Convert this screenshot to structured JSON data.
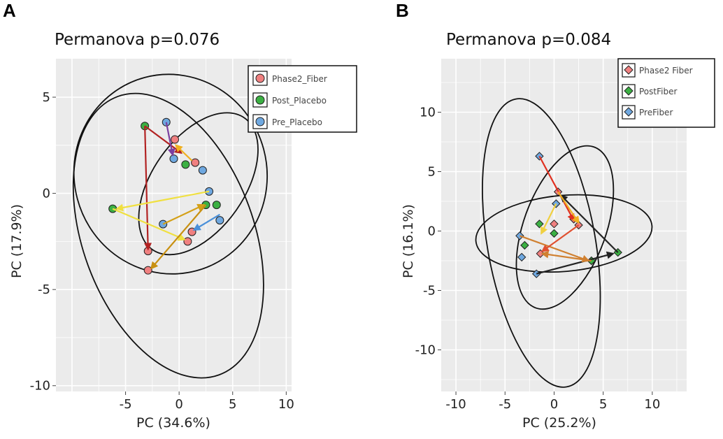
{
  "chart_data": [
    {
      "panel_label": "A",
      "type": "scatter",
      "title": "Permanova p=0.076",
      "xlabel": "PC  (34.6%)",
      "ylabel": "PC  (17.9%)",
      "xlim": [
        -11.5,
        10.5
      ],
      "ylim": [
        -10.3,
        7
      ],
      "xticks": [
        -5,
        0,
        5,
        10
      ],
      "xtick_labels": [
        "-5",
        "0",
        "5",
        "10"
      ],
      "yticks": [
        5,
        0,
        -5,
        -10
      ],
      "ytick_labels": [
        "5",
        "0",
        "-5",
        "-10"
      ],
      "legend": [
        {
          "label": "Phase2_Fiber",
          "color": "#f08080",
          "shape": "circle"
        },
        {
          "label": "Post_Placebo",
          "color": "#3cb043",
          "shape": "circle"
        },
        {
          "label": "Pre_Placebo",
          "color": "#6fa8e0",
          "shape": "circle"
        }
      ],
      "legend_position": "top-right",
      "points": [
        {
          "x": -3.2,
          "y": 3.5,
          "group": "Post_Placebo"
        },
        {
          "x": -6.2,
          "y": -0.8,
          "group": "Post_Placebo"
        },
        {
          "x": 0.6,
          "y": 1.5,
          "group": "Post_Placebo"
        },
        {
          "x": 2.5,
          "y": -0.6,
          "group": "Post_Placebo"
        },
        {
          "x": 3.5,
          "y": -0.6,
          "group": "Post_Placebo"
        },
        {
          "x": -2.9,
          "y": -3.0,
          "group": "Phase2_Fiber"
        },
        {
          "x": -2.9,
          "y": -4.0,
          "group": "Phase2_Fiber"
        },
        {
          "x": -0.4,
          "y": 2.8,
          "group": "Phase2_Fiber"
        },
        {
          "x": 1.5,
          "y": 1.6,
          "group": "Phase2_Fiber"
        },
        {
          "x": 1.2,
          "y": -2.0,
          "group": "Phase2_Fiber"
        },
        {
          "x": 0.8,
          "y": -2.5,
          "group": "Phase2_Fiber"
        },
        {
          "x": -1.2,
          "y": 3.7,
          "group": "Pre_Placebo"
        },
        {
          "x": -0.5,
          "y": 1.8,
          "group": "Pre_Placebo"
        },
        {
          "x": -1.5,
          "y": -1.6,
          "group": "Pre_Placebo"
        },
        {
          "x": 2.8,
          "y": 0.1,
          "group": "Pre_Placebo"
        },
        {
          "x": 2.2,
          "y": 1.2,
          "group": "Pre_Placebo"
        },
        {
          "x": 3.8,
          "y": -1.4,
          "group": "Pre_Placebo"
        }
      ],
      "arrows": [
        {
          "from": [
            -3.2,
            3.5
          ],
          "to": [
            -2.9,
            -2.9
          ],
          "color": "#b22222"
        },
        {
          "from": [
            -3.2,
            3.5
          ],
          "to": [
            0.2,
            2.1
          ],
          "color": "#b22222"
        },
        {
          "from": [
            -1.2,
            3.7
          ],
          "to": [
            -0.6,
            2.0
          ],
          "color": "#7b3fa0"
        },
        {
          "from": [
            1.2,
            1.7
          ],
          "to": [
            -0.3,
            2.5
          ],
          "color": "#f0b020"
        },
        {
          "from": [
            2.8,
            0.1
          ],
          "to": [
            -5.8,
            -0.8
          ],
          "color": "#f0e040"
        },
        {
          "from": [
            -6.2,
            -0.8
          ],
          "to": [
            0.5,
            -2.4
          ],
          "color": "#f0e040"
        },
        {
          "from": [
            2.5,
            -0.6
          ],
          "to": [
            -2.6,
            -3.9
          ],
          "color": "#c89010"
        },
        {
          "from": [
            -1.5,
            -1.6
          ],
          "to": [
            2.3,
            -0.6
          ],
          "color": "#d4a017"
        },
        {
          "from": [
            3.8,
            -1.1
          ],
          "to": [
            1.4,
            -1.9
          ],
          "color": "#4a90d9"
        }
      ],
      "ellipses": [
        {
          "cx": -0.8,
          "cy": 1.0,
          "rx": 9.0,
          "ry": 5.2,
          "rotate_deg": -15
        },
        {
          "cx": -1.0,
          "cy": -2.2,
          "rx": 8.0,
          "ry": 7.7,
          "rotate_deg": -20
        },
        {
          "cx": 1.8,
          "cy": 0.5,
          "rx": 7.5,
          "ry": 2.4,
          "rotate_deg": -55
        }
      ]
    },
    {
      "panel_label": "B",
      "type": "scatter",
      "title": "Permanova p=0.084",
      "xlabel": "PC  (25.2%)",
      "ylabel": "PC  (16.1%)",
      "xlim": [
        -11.5,
        13.5
      ],
      "ylim": [
        -13.5,
        14.5
      ],
      "xticks": [
        -10,
        -5,
        0,
        5,
        10
      ],
      "xtick_labels": [
        "-10",
        "-5",
        "0",
        "5",
        "10"
      ],
      "yticks": [
        10,
        5,
        0,
        -5,
        -10
      ],
      "ytick_labels": [
        "10",
        "5",
        "0",
        "-5",
        "-10"
      ],
      "legend": [
        {
          "label": "Phase2 Fiber",
          "color": "#f08080",
          "shape": "diamond"
        },
        {
          "label": "PostFiber",
          "color": "#3cb043",
          "shape": "diamond"
        },
        {
          "label": "PreFiber",
          "color": "#6fa8e0",
          "shape": "diamond"
        }
      ],
      "legend_position": "top-right",
      "points": [
        {
          "x": -1.5,
          "y": 6.3,
          "group": "PreFiber"
        },
        {
          "x": 0.2,
          "y": 2.3,
          "group": "PreFiber"
        },
        {
          "x": -3.5,
          "y": -0.4,
          "group": "PreFiber"
        },
        {
          "x": -3.3,
          "y": -2.2,
          "group": "PreFiber"
        },
        {
          "x": -1.8,
          "y": -3.6,
          "group": "PreFiber"
        },
        {
          "x": 0.4,
          "y": 3.3,
          "group": "Phase2 Fiber"
        },
        {
          "x": 2.0,
          "y": 1.0,
          "group": "Phase2 Fiber"
        },
        {
          "x": -1.4,
          "y": -1.9,
          "group": "Phase2 Fiber"
        },
        {
          "x": 0.0,
          "y": 0.6,
          "group": "Phase2 Fiber"
        },
        {
          "x": 2.5,
          "y": 0.5,
          "group": "Phase2 Fiber"
        },
        {
          "x": 6.5,
          "y": -1.8,
          "group": "PostFiber"
        },
        {
          "x": 3.8,
          "y": -2.5,
          "group": "PostFiber"
        },
        {
          "x": -3.0,
          "y": -1.2,
          "group": "PostFiber"
        },
        {
          "x": 0.0,
          "y": -0.2,
          "group": "PostFiber"
        },
        {
          "x": -1.5,
          "y": 0.6,
          "group": "PostFiber"
        }
      ],
      "arrows": [
        {
          "from": [
            -1.5,
            6.3
          ],
          "to": [
            2.0,
            0.9
          ],
          "color": "#e03020"
        },
        {
          "from": [
            6.5,
            -1.8
          ],
          "to": [
            0.7,
            3.0
          ],
          "color": "#222222"
        },
        {
          "from": [
            -1.8,
            -3.6
          ],
          "to": [
            6.0,
            -1.9
          ],
          "color": "#222222"
        },
        {
          "from": [
            -3.5,
            -0.4
          ],
          "to": [
            3.5,
            -2.5
          ],
          "color": "#d08030"
        },
        {
          "from": [
            3.8,
            -2.5
          ],
          "to": [
            -1.2,
            -1.9
          ],
          "color": "#d08030"
        },
        {
          "from": [
            0.4,
            3.3
          ],
          "to": [
            2.5,
            0.7
          ],
          "color": "#f0b020"
        },
        {
          "from": [
            0.2,
            2.3
          ],
          "to": [
            -1.3,
            -0.2
          ],
          "color": "#f0d040"
        },
        {
          "from": [
            2.5,
            0.5
          ],
          "to": [
            -1.2,
            -1.7
          ],
          "color": "#e05030"
        }
      ],
      "ellipses": [
        {
          "cx": -1.3,
          "cy": -1.0,
          "rx": 5.5,
          "ry": 12.3,
          "rotate_deg": -10
        },
        {
          "cx": 1.0,
          "cy": -0.2,
          "rx": 9.0,
          "ry": 3.2,
          "rotate_deg": -5
        },
        {
          "cx": 1.1,
          "cy": 0.3,
          "rx": 4.2,
          "ry": 7.2,
          "rotate_deg": 20
        }
      ]
    }
  ]
}
